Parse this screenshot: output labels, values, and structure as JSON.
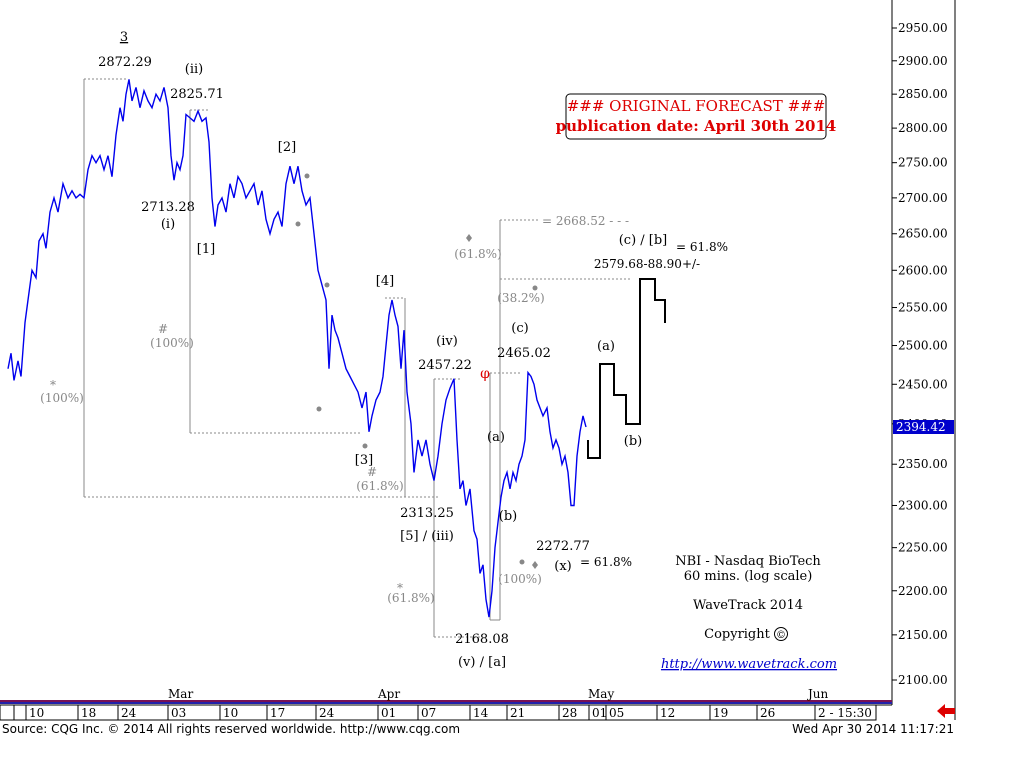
{
  "chart_data": {
    "type": "line",
    "yscale": "log",
    "ylim": [
      2080,
      2990
    ],
    "y_ticks": [
      2950,
      2900,
      2850,
      2800,
      2750,
      2700,
      2650,
      2600,
      2550,
      2500,
      2450,
      2400,
      2350,
      2300,
      2250,
      2200,
      2150,
      2100
    ],
    "y_tick_labels": [
      "2950.00",
      "2900.00",
      "2850.00",
      "2800.00",
      "2750.00",
      "2700.00",
      "2650.00",
      "2600.00",
      "2550.00",
      "2500.00",
      "2450.00",
      "2400.00",
      "2350.00",
      "2300.00",
      "2250.00",
      "2200.00",
      "2150.00",
      "2100.00"
    ],
    "last_price": 2394.42,
    "last_price_label": "2394.42",
    "x_day_labels": [
      "10",
      "18",
      "24",
      "03",
      "10",
      "17",
      "24",
      "01",
      "07",
      "14",
      "21",
      "28",
      "01",
      "05",
      "12",
      "19",
      "26",
      "2 - 15:30"
    ],
    "x_month_labels": [
      "Mar",
      "Apr",
      "May",
      "Jun"
    ],
    "series": [
      {
        "color": "#0000ee",
        "points": [
          [
            0,
            2470
          ],
          [
            3,
            2490
          ],
          [
            6,
            2455
          ],
          [
            10,
            2480
          ],
          [
            13,
            2460
          ],
          [
            17,
            2530
          ],
          [
            20,
            2560
          ],
          [
            24,
            2600
          ],
          [
            28,
            2590
          ],
          [
            31,
            2640
          ],
          [
            35,
            2650
          ],
          [
            38,
            2630
          ],
          [
            42,
            2680
          ],
          [
            46,
            2700
          ],
          [
            50,
            2680
          ],
          [
            55,
            2720
          ],
          [
            60,
            2700
          ],
          [
            64,
            2710
          ],
          [
            68,
            2700
          ],
          [
            72,
            2705
          ],
          [
            76,
            2700
          ],
          [
            80,
            2740
          ],
          [
            84,
            2760
          ],
          [
            88,
            2750
          ],
          [
            92,
            2760
          ],
          [
            96,
            2740
          ],
          [
            100,
            2760
          ],
          [
            104,
            2730
          ],
          [
            108,
            2790
          ],
          [
            112,
            2830
          ],
          [
            115,
            2810
          ],
          [
            118,
            2850
          ],
          [
            121,
            2872
          ],
          [
            124,
            2840
          ],
          [
            128,
            2860
          ],
          [
            132,
            2830
          ],
          [
            136,
            2855
          ],
          [
            140,
            2840
          ],
          [
            144,
            2830
          ],
          [
            148,
            2850
          ],
          [
            152,
            2840
          ],
          [
            156,
            2860
          ],
          [
            160,
            2830
          ],
          [
            163,
            2760
          ],
          [
            166,
            2725
          ],
          [
            169,
            2750
          ],
          [
            172,
            2740
          ],
          [
            175,
            2760
          ],
          [
            178,
            2820
          ],
          [
            182,
            2815
          ],
          [
            186,
            2810
          ],
          [
            190,
            2825
          ],
          [
            194,
            2810
          ],
          [
            198,
            2815
          ],
          [
            201,
            2780
          ],
          [
            204,
            2700
          ],
          [
            207,
            2660
          ],
          [
            210,
            2690
          ],
          [
            214,
            2700
          ],
          [
            218,
            2680
          ],
          [
            222,
            2720
          ],
          [
            226,
            2700
          ],
          [
            230,
            2730
          ],
          [
            234,
            2720
          ],
          [
            238,
            2700
          ],
          [
            242,
            2710
          ],
          [
            246,
            2720
          ],
          [
            250,
            2690
          ],
          [
            254,
            2710
          ],
          [
            258,
            2670
          ],
          [
            262,
            2650
          ],
          [
            266,
            2670
          ],
          [
            270,
            2680
          ],
          [
            274,
            2660
          ],
          [
            278,
            2720
          ],
          [
            282,
            2745
          ],
          [
            286,
            2720
          ],
          [
            290,
            2745
          ],
          [
            294,
            2710
          ],
          [
            298,
            2690
          ],
          [
            302,
            2700
          ],
          [
            306,
            2650
          ],
          [
            310,
            2600
          ],
          [
            314,
            2580
          ],
          [
            318,
            2560
          ],
          [
            321,
            2470
          ],
          [
            324,
            2540
          ],
          [
            327,
            2520
          ],
          [
            330,
            2510
          ],
          [
            334,
            2490
          ],
          [
            338,
            2470
          ],
          [
            342,
            2460
          ],
          [
            346,
            2450
          ],
          [
            350,
            2440
          ],
          [
            354,
            2420
          ],
          [
            358,
            2440
          ],
          [
            361,
            2390
          ],
          [
            364,
            2410
          ],
          [
            368,
            2430
          ],
          [
            372,
            2440
          ],
          [
            375,
            2460
          ],
          [
            378,
            2500
          ],
          [
            381,
            2540
          ],
          [
            384,
            2560
          ],
          [
            387,
            2540
          ],
          [
            390,
            2525
          ],
          [
            393,
            2470
          ],
          [
            396,
            2520
          ],
          [
            399,
            2440
          ],
          [
            403,
            2400
          ],
          [
            406,
            2340
          ],
          [
            410,
            2380
          ],
          [
            414,
            2360
          ],
          [
            418,
            2380
          ],
          [
            422,
            2350
          ],
          [
            426,
            2330
          ],
          [
            430,
            2360
          ],
          [
            434,
            2400
          ],
          [
            438,
            2430
          ],
          [
            442,
            2445
          ],
          [
            446,
            2457
          ],
          [
            449,
            2380
          ],
          [
            452,
            2320
          ],
          [
            455,
            2330
          ],
          [
            458,
            2300
          ],
          [
            462,
            2320
          ],
          [
            466,
            2270
          ],
          [
            469,
            2260
          ],
          [
            472,
            2220
          ],
          [
            475,
            2230
          ],
          [
            478,
            2190
          ],
          [
            481,
            2170
          ],
          [
            484,
            2200
          ],
          [
            487,
            2250
          ],
          [
            490,
            2280
          ],
          [
            493,
            2310
          ],
          [
            496,
            2330
          ],
          [
            499,
            2340
          ],
          [
            502,
            2320
          ],
          [
            505,
            2340
          ],
          [
            508,
            2330
          ],
          [
            511,
            2350
          ],
          [
            514,
            2360
          ],
          [
            517,
            2380
          ],
          [
            520,
            2465
          ],
          [
            523,
            2460
          ],
          [
            526,
            2450
          ],
          [
            529,
            2430
          ],
          [
            532,
            2420
          ],
          [
            535,
            2410
          ],
          [
            539,
            2420
          ],
          [
            542,
            2390
          ],
          [
            545,
            2370
          ],
          [
            548,
            2380
          ],
          [
            551,
            2370
          ],
          [
            554,
            2350
          ],
          [
            557,
            2360
          ],
          [
            560,
            2340
          ],
          [
            563,
            2300
          ],
          [
            566,
            2300
          ],
          [
            569,
            2360
          ],
          [
            572,
            2390
          ],
          [
            575,
            2410
          ],
          [
            578,
            2396
          ]
        ]
      }
    ],
    "annotations": [
      {
        "id": "lbl-3",
        "text": "3"
      },
      {
        "id": "lbl-2872",
        "text": "2872.29"
      },
      {
        "id": "lbl-ii",
        "text": "(ii)"
      },
      {
        "id": "lbl-2825",
        "text": "2825.71"
      },
      {
        "id": "lbl-2713",
        "text": "2713.28"
      },
      {
        "id": "lbl-i",
        "text": "(i)"
      },
      {
        "id": "lbl-b1",
        "text": "[1]"
      },
      {
        "id": "lbl-b2",
        "text": "[2]"
      },
      {
        "id": "lbl-b3",
        "text": "[3]"
      },
      {
        "id": "lbl-b4",
        "text": "[4]"
      },
      {
        "id": "lbl-iv",
        "text": "(iv)"
      },
      {
        "id": "lbl-2457",
        "text": "2457.22"
      },
      {
        "id": "lbl-2313",
        "text": "2313.25"
      },
      {
        "id": "lbl-5iii",
        "text": "[5] / (iii)"
      },
      {
        "id": "lbl-2168",
        "text": "2168.08"
      },
      {
        "id": "lbl-va",
        "text": "(v) / [a]"
      },
      {
        "id": "lbl-a-small",
        "text": "(a)"
      },
      {
        "id": "lbl-b-small",
        "text": "(b)"
      },
      {
        "id": "lbl-c-small",
        "text": "(c)"
      },
      {
        "id": "lbl-2465",
        "text": "2465.02"
      },
      {
        "id": "lbl-2272",
        "text": "2272.77"
      },
      {
        "id": "lbl-x",
        "text": "(x)"
      },
      {
        "id": "lbl-x-fib",
        "text": "= 61.8%"
      },
      {
        "id": "lbl-2668",
        "text": "= 2668.52 - - -"
      },
      {
        "id": "lbl-cb",
        "text": "(c) / [b]"
      },
      {
        "id": "lbl-cb-fib",
        "text": "= 61.8%"
      },
      {
        "id": "lbl-target",
        "text": "2579.68-88.90+/-"
      },
      {
        "id": "lbl-fa",
        "text": "(a)"
      },
      {
        "id": "lbl-fb",
        "text": "(b)"
      },
      {
        "id": "lbl-fib-618-top",
        "text": "(61.8%)"
      },
      {
        "id": "lbl-fib-382",
        "text": "(38.2%)"
      },
      {
        "id": "lbl-fib-hash1",
        "text": "#"
      },
      {
        "id": "lbl-fib-100-a",
        "text": "(100%)"
      },
      {
        "id": "lbl-fib-star1",
        "text": "*"
      },
      {
        "id": "lbl-fib-100-b",
        "text": "(100%)"
      },
      {
        "id": "lbl-fib-hash2",
        "text": "#"
      },
      {
        "id": "lbl-fib-618-mid",
        "text": "(61.8%)"
      },
      {
        "id": "lbl-fib-star2",
        "text": "*"
      },
      {
        "id": "lbl-fib-618-low",
        "text": "(61.8%)"
      },
      {
        "id": "lbl-fib-100-c",
        "text": "(100%)"
      },
      {
        "id": "lbl-phi",
        "text": "φ"
      }
    ]
  },
  "forecast_box": {
    "line1": "### ORIGINAL FORECAST ###",
    "line2": "publication date: April 30th 2014",
    "color": "#dd0000"
  },
  "info": {
    "line1": "NBI - Nasdaq BioTech",
    "line2": "60 mins. (log scale)",
    "line3": "WaveTrack 2014",
    "copyright": "Copyright",
    "copyright_symbol": "©",
    "url": "http://www.wavetrack.com"
  },
  "footer": {
    "source": "Source: CQG Inc. © 2014 All rights reserved worldwide.  http://www.cqg.com",
    "timestamp": "Wed Apr 30 2014  11:17:21"
  }
}
